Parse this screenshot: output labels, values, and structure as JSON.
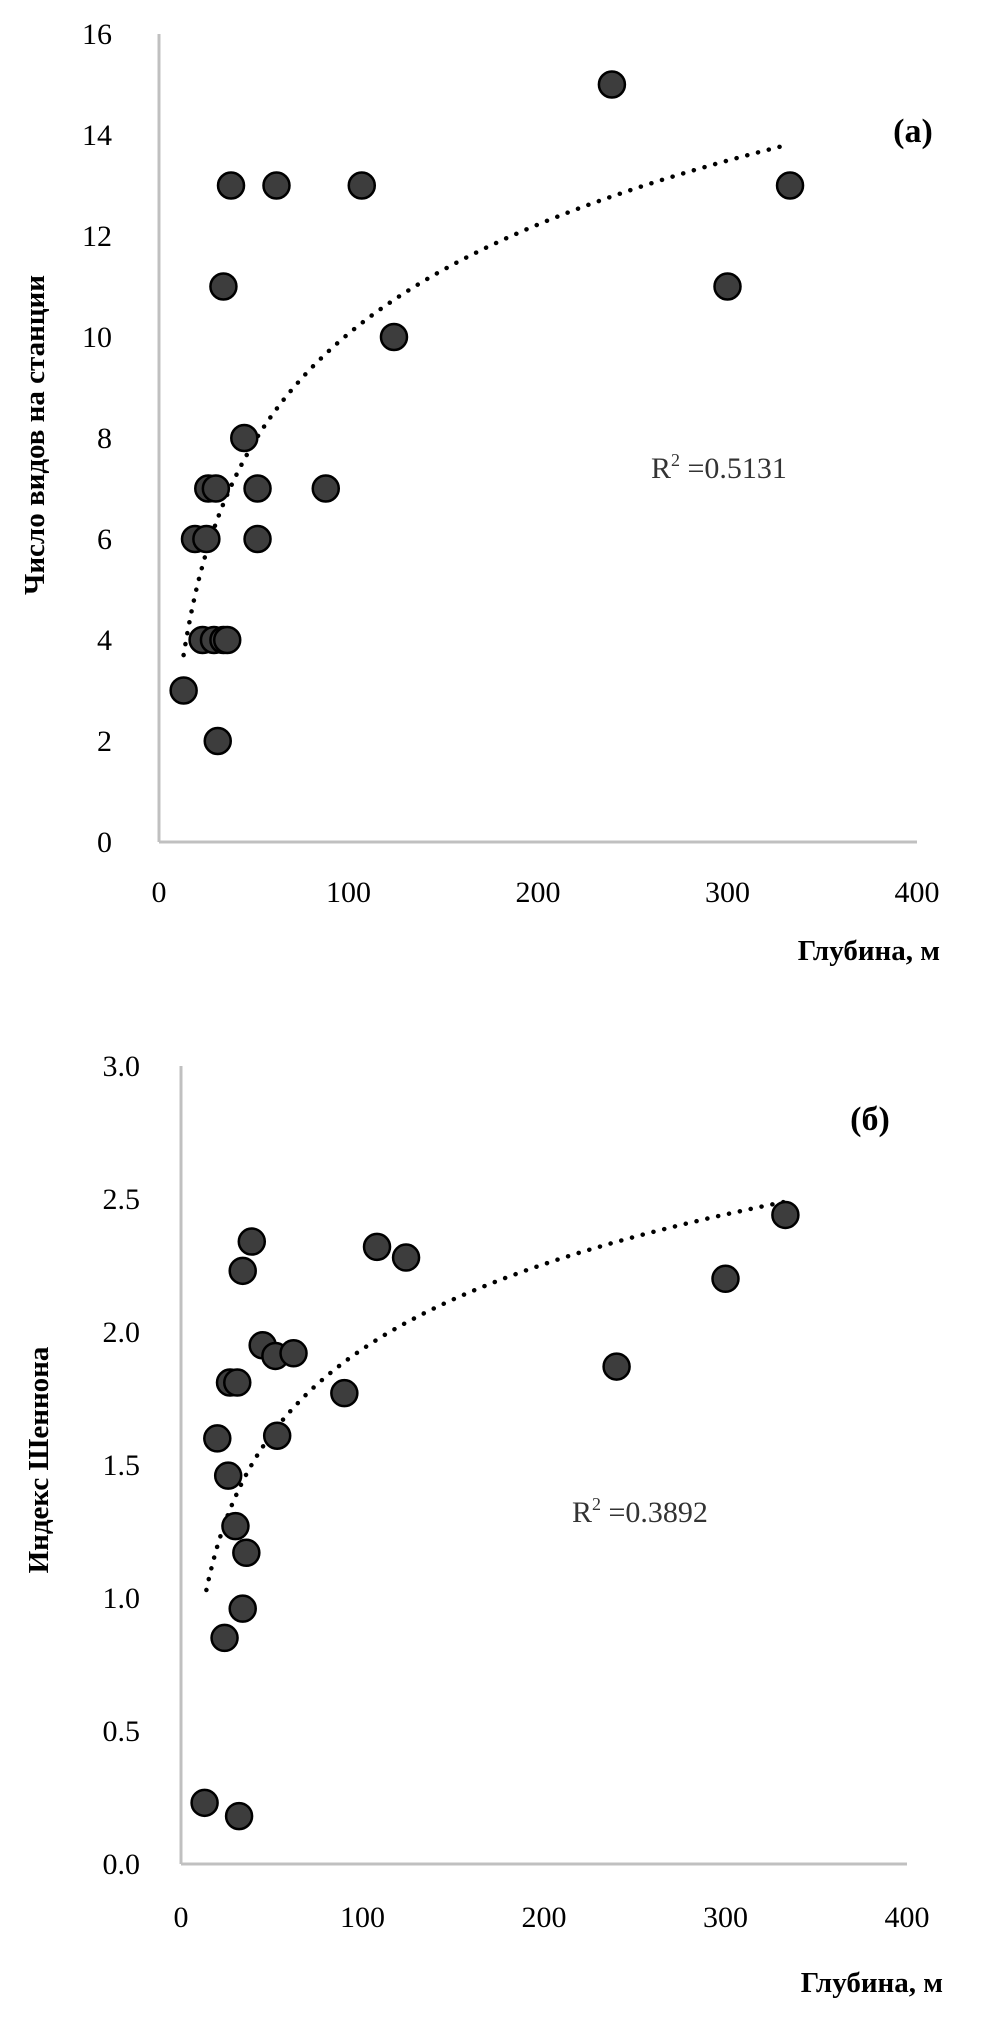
{
  "colors": {
    "point_fill": "#3d3d3d",
    "point_stroke": "#000000",
    "axis": "#c0c0c0",
    "trend": "#000000"
  },
  "chart_data": [
    {
      "type": "scatter",
      "panel_label": "(a)",
      "xlabel": "Глубина, м",
      "ylabel": "Число видов на станции",
      "xlim": [
        0,
        400
      ],
      "ylim": [
        0,
        16
      ],
      "x_ticks": [
        "0",
        "100",
        "200",
        "300",
        "400"
      ],
      "y_ticks": [
        "0",
        "2",
        "4",
        "6",
        "8",
        "10",
        "12",
        "14",
        "16"
      ],
      "grid": false,
      "r2_label": {
        "prefix": "R",
        "sup": "2",
        "suffix": " =0.5131"
      },
      "trendline": {
        "type": "logarithmic",
        "x_start": 13,
        "x_end": 331,
        "y_start": 3.7,
        "y_end": 13.8
      },
      "points": [
        {
          "x": 38,
          "y": 13
        },
        {
          "x": 62,
          "y": 13
        },
        {
          "x": 107,
          "y": 13
        },
        {
          "x": 239,
          "y": 15
        },
        {
          "x": 333,
          "y": 13
        },
        {
          "x": 300,
          "y": 11
        },
        {
          "x": 34,
          "y": 11
        },
        {
          "x": 124,
          "y": 10
        },
        {
          "x": 45,
          "y": 8
        },
        {
          "x": 26,
          "y": 7
        },
        {
          "x": 30,
          "y": 7
        },
        {
          "x": 52,
          "y": 7
        },
        {
          "x": 88,
          "y": 7
        },
        {
          "x": 19,
          "y": 6
        },
        {
          "x": 25,
          "y": 6
        },
        {
          "x": 52,
          "y": 6
        },
        {
          "x": 23,
          "y": 4
        },
        {
          "x": 29,
          "y": 4
        },
        {
          "x": 34,
          "y": 4
        },
        {
          "x": 36,
          "y": 4
        },
        {
          "x": 13,
          "y": 3
        },
        {
          "x": 31,
          "y": 2
        }
      ]
    },
    {
      "type": "scatter",
      "panel_label": "(б)",
      "xlabel": "Глубина, м",
      "ylabel": "Индекс Шеннона",
      "xlim": [
        0,
        400
      ],
      "ylim": [
        0,
        3
      ],
      "x_ticks": [
        "0",
        "100",
        "200",
        "300",
        "400"
      ],
      "y_ticks": [
        "0.0",
        "0.5",
        "1.0",
        "1.5",
        "2.0",
        "2.5",
        "3.0"
      ],
      "grid": false,
      "r2_label": {
        "prefix": "R",
        "sup": "2",
        "suffix": " =0.3892"
      },
      "trendline": {
        "type": "logarithmic",
        "x_start": 14,
        "x_end": 333,
        "y_start": 1.03,
        "y_end": 2.49
      },
      "points": [
        {
          "x": 39,
          "y": 2.34
        },
        {
          "x": 34,
          "y": 2.23
        },
        {
          "x": 108,
          "y": 2.32
        },
        {
          "x": 124,
          "y": 2.28
        },
        {
          "x": 333,
          "y": 2.44
        },
        {
          "x": 300,
          "y": 2.2
        },
        {
          "x": 240,
          "y": 1.87
        },
        {
          "x": 45,
          "y": 1.95
        },
        {
          "x": 52,
          "y": 1.91
        },
        {
          "x": 62,
          "y": 1.92
        },
        {
          "x": 27,
          "y": 1.81
        },
        {
          "x": 31,
          "y": 1.81
        },
        {
          "x": 90,
          "y": 1.77
        },
        {
          "x": 20,
          "y": 1.6
        },
        {
          "x": 53,
          "y": 1.61
        },
        {
          "x": 26,
          "y": 1.46
        },
        {
          "x": 30,
          "y": 1.27
        },
        {
          "x": 36,
          "y": 1.17
        },
        {
          "x": 34,
          "y": 0.96
        },
        {
          "x": 24,
          "y": 0.85
        },
        {
          "x": 13,
          "y": 0.23
        },
        {
          "x": 32,
          "y": 0.18
        }
      ]
    }
  ]
}
